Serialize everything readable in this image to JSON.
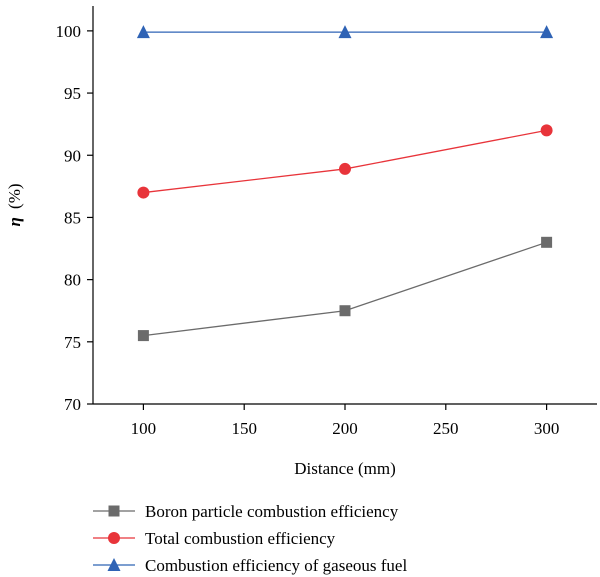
{
  "chart_data": {
    "type": "line",
    "title": "",
    "xlabel": "Distance (mm)",
    "ylabel_symbol": "η",
    "ylabel_unit": "(%)",
    "xlim": [
      75,
      325
    ],
    "ylim": [
      70,
      102
    ],
    "xticks": [
      100,
      150,
      200,
      250,
      300
    ],
    "yticks": [
      70,
      75,
      80,
      85,
      90,
      95,
      100
    ],
    "x": [
      100,
      200,
      300
    ],
    "grid": false,
    "legend_position": "bottom",
    "series": [
      {
        "name": "Boron particle combustion efficiency",
        "values": [
          75.5,
          77.5,
          83
        ],
        "color": "#6b6b6b",
        "marker": "square"
      },
      {
        "name": "Total combustion efficiency",
        "values": [
          87,
          88.9,
          92
        ],
        "color": "#e8343a",
        "marker": "circle"
      },
      {
        "name": "Combustion efficiency of gaseous fuel",
        "values": [
          99.9,
          99.9,
          99.9
        ],
        "color": "#2f63b5",
        "marker": "triangle"
      }
    ]
  }
}
